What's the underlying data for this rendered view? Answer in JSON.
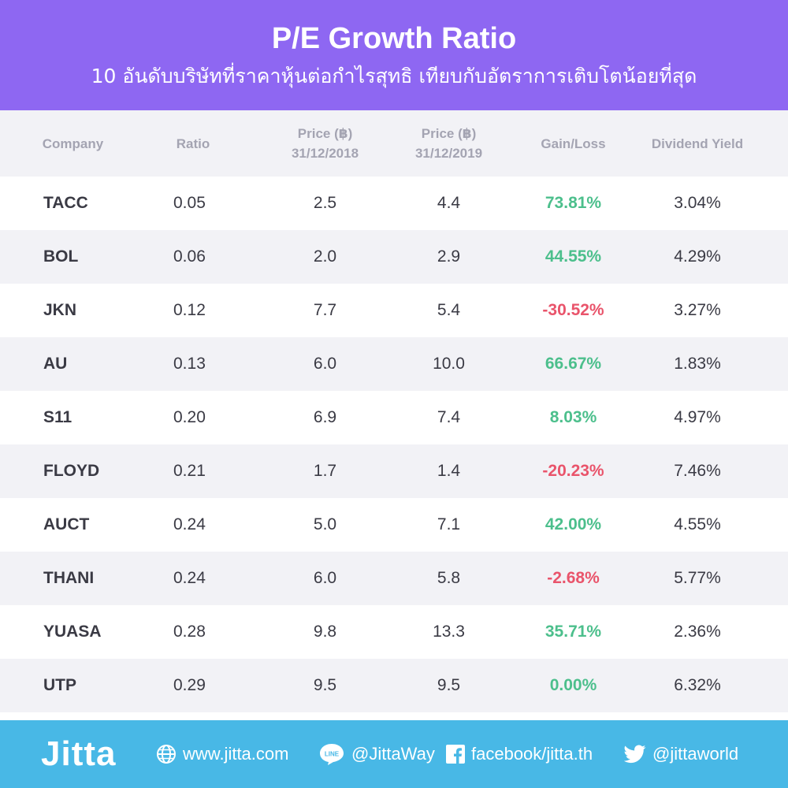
{
  "header": {
    "title": "P/E Growth Ratio",
    "subtitle": "10 อันดับบริษัทที่ราคาหุ้นต่อกำไรสุทธิ เทียบกับอัตราการเติบโตน้อยที่สุด"
  },
  "table": {
    "columns": {
      "company": "Company",
      "ratio": "Ratio",
      "price_2018_line1": "Price (฿)",
      "price_2018_line2": "31/12/2018",
      "price_2019_line1": "Price (฿)",
      "price_2019_line2": "31/12/2019",
      "gain_loss": "Gain/Loss",
      "dividend_yield": "Dividend Yield"
    },
    "rows": [
      {
        "company": "TACC",
        "ratio": "0.05",
        "p18": "2.5",
        "p19": "4.4",
        "gain": "73.81%",
        "div": "3.04%"
      },
      {
        "company": "BOL",
        "ratio": "0.06",
        "p18": "2.0",
        "p19": "2.9",
        "gain": "44.55%",
        "div": "4.29%"
      },
      {
        "company": "JKN",
        "ratio": "0.12",
        "p18": "7.7",
        "p19": "5.4",
        "gain": "-30.52%",
        "div": "3.27%"
      },
      {
        "company": "AU",
        "ratio": "0.13",
        "p18": "6.0",
        "p19": "10.0",
        "gain": "66.67%",
        "div": "1.83%"
      },
      {
        "company": "S11",
        "ratio": "0.20",
        "p18": "6.9",
        "p19": "7.4",
        "gain": "8.03%",
        "div": "4.97%"
      },
      {
        "company": "FLOYD",
        "ratio": "0.21",
        "p18": "1.7",
        "p19": "1.4",
        "gain": "-20.23%",
        "div": "7.46%"
      },
      {
        "company": "AUCT",
        "ratio": "0.24",
        "p18": "5.0",
        "p19": "7.1",
        "gain": "42.00%",
        "div": "4.55%"
      },
      {
        "company": "THANI",
        "ratio": "0.24",
        "p18": "6.0",
        "p19": "5.8",
        "gain": "-2.68%",
        "div": "5.77%"
      },
      {
        "company": "YUASA",
        "ratio": "0.28",
        "p18": "9.8",
        "p19": "13.3",
        "gain": "35.71%",
        "div": "2.36%"
      },
      {
        "company": "UTP",
        "ratio": "0.29",
        "p18": "9.5",
        "p19": "9.5",
        "gain": "0.00%",
        "div": "6.32%"
      }
    ]
  },
  "footer": {
    "logo": "Jitta",
    "website": "www.jitta.com",
    "line_label": "LINE",
    "line": "@JittaWay",
    "facebook": "facebook/jitta.th",
    "twitter": "@jittaworld"
  },
  "colors": {
    "header_bg": "#8e67f2",
    "footer_bg": "#48b8e6",
    "gain_positive": "#4cbf8c",
    "gain_negative": "#e9546b",
    "row_alt": "#f2f2f6"
  }
}
